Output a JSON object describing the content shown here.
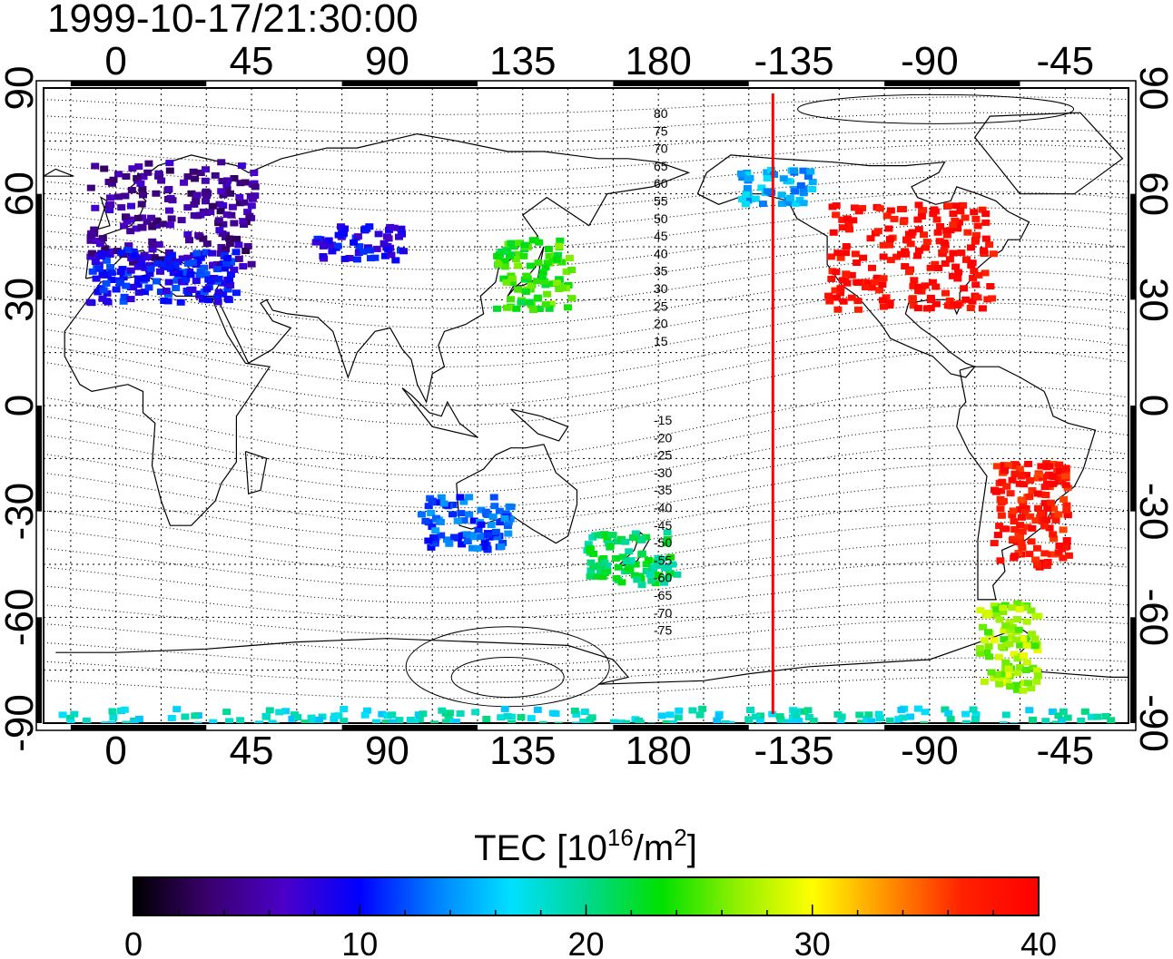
{
  "title": "1999-10-17/21:30:00",
  "x_ticks": [
    {
      "lon": 0,
      "label": "0"
    },
    {
      "lon": 45,
      "label": "45"
    },
    {
      "lon": 90,
      "label": "90"
    },
    {
      "lon": 135,
      "label": "135"
    },
    {
      "lon": 180,
      "label": "180"
    },
    {
      "lon": 225,
      "label": "-135"
    },
    {
      "lon": 270,
      "label": "-90"
    },
    {
      "lon": 315,
      "label": "-45"
    }
  ],
  "y_ticks": [
    {
      "lat": 90,
      "label": "90"
    },
    {
      "lat": 60,
      "label": "60"
    },
    {
      "lat": 30,
      "label": "30"
    },
    {
      "lat": 0,
      "label": "0"
    },
    {
      "lat": -30,
      "label": "-30"
    },
    {
      "lat": -60,
      "label": "-60"
    },
    {
      "lat": -90,
      "label": "-90"
    }
  ],
  "map": {
    "lon_range": [
      -24,
      336
    ],
    "lat_range": [
      -90,
      90
    ],
    "terminator_lon": -142,
    "terminator_color": "#ff0000",
    "magnetic_lat_labels_north": [
      "80",
      "75",
      "70",
      "65",
      "60",
      "55",
      "50",
      "45",
      "40",
      "35",
      "30",
      "25",
      "20",
      "15"
    ],
    "magnetic_lat_labels_south": [
      "-15",
      "-20",
      "-25",
      "-30",
      "-35",
      "-40",
      "-45",
      "-50",
      "-55",
      "-60",
      "-65",
      "-70",
      "-75"
    ]
  },
  "colorbar": {
    "title_prefix": "TEC  [10",
    "title_sup1": "16",
    "title_mid": "/m",
    "title_sup2": "2",
    "title_suffix": "]",
    "min": 0,
    "max": 40,
    "labels": [
      "0",
      "10",
      "20",
      "30",
      "40"
    ],
    "stops": [
      "#000000",
      "#3a006e",
      "#4a00c8",
      "#0000ff",
      "#0080ff",
      "#00e0ff",
      "#00d890",
      "#00e000",
      "#90f000",
      "#ffff00",
      "#ff9000",
      "#ff2000",
      "#ff0000"
    ]
  },
  "chart_data": {
    "type": "heatmap",
    "title": "1999-10-17/21:30:00",
    "quantity": "TEC [10^16/m^2]",
    "value_range": [
      0,
      40
    ],
    "regions": [
      {
        "lon": [
          -10,
          45
        ],
        "lat": [
          40,
          70
        ],
        "tec": 5
      },
      {
        "lon": [
          -10,
          40
        ],
        "lat": [
          30,
          45
        ],
        "tec": 10
      },
      {
        "lon": [
          65,
          95
        ],
        "lat": [
          42,
          52
        ],
        "tec": 9
      },
      {
        "lon": [
          125,
          150
        ],
        "lat": [
          28,
          48
        ],
        "tec": 24
      },
      {
        "lon": [
          205,
          230
        ],
        "lat": [
          58,
          68
        ],
        "tec": 15
      },
      {
        "lon": [
          235,
          290
        ],
        "lat": [
          28,
          58
        ],
        "tec": 39
      },
      {
        "lon": [
          290,
          315
        ],
        "lat": [
          -45,
          -15
        ],
        "tec": 38
      },
      {
        "lon": [
          285,
          305
        ],
        "lat": [
          -80,
          -55
        ],
        "tec": 27
      },
      {
        "lon": [
          155,
          185
        ],
        "lat": [
          -50,
          -35
        ],
        "tec": 21
      },
      {
        "lon": [
          100,
          130
        ],
        "lat": [
          -40,
          -25
        ],
        "tec": 12
      },
      {
        "lon": [
          -20,
          330
        ],
        "lat": [
          -90,
          -85
        ],
        "tec": 18
      }
    ]
  }
}
